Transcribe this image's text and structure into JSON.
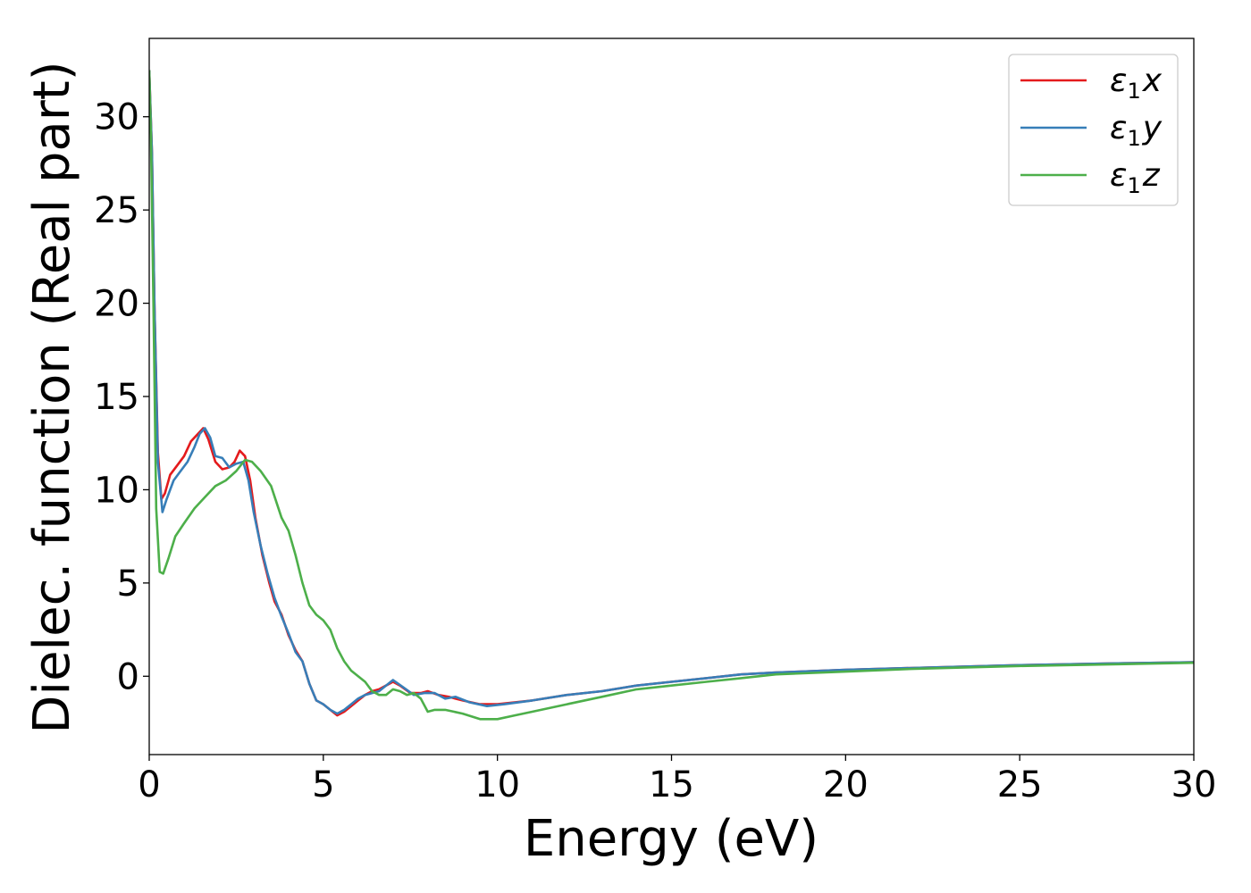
{
  "chart_data": {
    "type": "line",
    "xlabel": "Energy (eV)",
    "ylabel": "Dielec. function (Real part)",
    "xlim": [
      0,
      30
    ],
    "ylim": [
      -4.2,
      34.2
    ],
    "xticks": [
      "0",
      "5",
      "10",
      "15",
      "20",
      "25",
      "30"
    ],
    "yticks": [
      "0",
      "5",
      "10",
      "15",
      "20",
      "25",
      "30"
    ],
    "grid": false,
    "legend_position": "top-right",
    "series": [
      {
        "name": "ε1x",
        "legend_base": "ε",
        "legend_sub": "1",
        "legend_var": "x",
        "color": "#e41a1c",
        "points": [
          [
            0,
            32.5
          ],
          [
            0.08,
            28
          ],
          [
            0.15,
            20
          ],
          [
            0.25,
            12
          ],
          [
            0.35,
            9.5
          ],
          [
            0.45,
            9.8
          ],
          [
            0.6,
            10.8
          ],
          [
            0.8,
            11.3
          ],
          [
            1.0,
            11.8
          ],
          [
            1.2,
            12.6
          ],
          [
            1.4,
            13.0
          ],
          [
            1.55,
            13.3
          ],
          [
            1.7,
            12.7
          ],
          [
            1.9,
            11.5
          ],
          [
            2.1,
            11.1
          ],
          [
            2.3,
            11.2
          ],
          [
            2.45,
            11.5
          ],
          [
            2.6,
            12.1
          ],
          [
            2.75,
            11.8
          ],
          [
            2.9,
            10.5
          ],
          [
            3.05,
            8.5
          ],
          [
            3.25,
            6.5
          ],
          [
            3.45,
            5.0
          ],
          [
            3.6,
            4.0
          ],
          [
            3.8,
            3.3
          ],
          [
            4.0,
            2.2
          ],
          [
            4.2,
            1.4
          ],
          [
            4.4,
            0.8
          ],
          [
            4.6,
            -0.4
          ],
          [
            4.8,
            -1.3
          ],
          [
            5.0,
            -1.5
          ],
          [
            5.2,
            -1.8
          ],
          [
            5.4,
            -2.1
          ],
          [
            5.6,
            -1.9
          ],
          [
            5.8,
            -1.6
          ],
          [
            6.0,
            -1.3
          ],
          [
            6.2,
            -1.0
          ],
          [
            6.4,
            -0.8
          ],
          [
            6.6,
            -0.7
          ],
          [
            6.8,
            -0.5
          ],
          [
            7.0,
            -0.3
          ],
          [
            7.2,
            -0.5
          ],
          [
            7.5,
            -0.9
          ],
          [
            7.8,
            -0.9
          ],
          [
            8.0,
            -0.8
          ],
          [
            8.3,
            -1.0
          ],
          [
            8.6,
            -1.1
          ],
          [
            9.0,
            -1.3
          ],
          [
            9.5,
            -1.5
          ],
          [
            10.0,
            -1.5
          ],
          [
            11,
            -1.3
          ],
          [
            12,
            -1.0
          ],
          [
            13,
            -0.8
          ],
          [
            14,
            -0.5
          ],
          [
            15,
            -0.3
          ],
          [
            16,
            -0.1
          ],
          [
            17,
            0.1
          ],
          [
            18,
            0.2
          ],
          [
            20,
            0.35
          ],
          [
            22,
            0.45
          ],
          [
            25,
            0.6
          ],
          [
            28,
            0.7
          ],
          [
            30,
            0.75
          ]
        ]
      },
      {
        "name": "ε1y",
        "legend_base": "ε",
        "legend_sub": "1",
        "legend_var": "y",
        "color": "#377eb8",
        "points": [
          [
            0,
            32.5
          ],
          [
            0.08,
            28
          ],
          [
            0.15,
            20
          ],
          [
            0.25,
            11.5
          ],
          [
            0.38,
            8.8
          ],
          [
            0.5,
            9.5
          ],
          [
            0.7,
            10.5
          ],
          [
            0.9,
            11.0
          ],
          [
            1.1,
            11.5
          ],
          [
            1.3,
            12.3
          ],
          [
            1.45,
            13.0
          ],
          [
            1.6,
            13.3
          ],
          [
            1.75,
            12.8
          ],
          [
            1.9,
            11.8
          ],
          [
            2.1,
            11.7
          ],
          [
            2.3,
            11.2
          ],
          [
            2.5,
            11.4
          ],
          [
            2.7,
            11.5
          ],
          [
            2.85,
            10.5
          ],
          [
            3.0,
            8.8
          ],
          [
            3.2,
            7.0
          ],
          [
            3.4,
            5.5
          ],
          [
            3.6,
            4.2
          ],
          [
            3.8,
            3.2
          ],
          [
            4.0,
            2.3
          ],
          [
            4.2,
            1.3
          ],
          [
            4.4,
            0.8
          ],
          [
            4.6,
            -0.4
          ],
          [
            4.8,
            -1.3
          ],
          [
            5.0,
            -1.5
          ],
          [
            5.2,
            -1.8
          ],
          [
            5.4,
            -2.0
          ],
          [
            5.6,
            -1.8
          ],
          [
            5.8,
            -1.5
          ],
          [
            6.0,
            -1.2
          ],
          [
            6.2,
            -1.0
          ],
          [
            6.4,
            -0.9
          ],
          [
            6.6,
            -0.8
          ],
          [
            6.8,
            -0.5
          ],
          [
            7.0,
            -0.2
          ],
          [
            7.3,
            -0.6
          ],
          [
            7.6,
            -1.0
          ],
          [
            7.9,
            -0.9
          ],
          [
            8.2,
            -0.9
          ],
          [
            8.5,
            -1.2
          ],
          [
            8.8,
            -1.1
          ],
          [
            9.2,
            -1.4
          ],
          [
            9.7,
            -1.6
          ],
          [
            10.2,
            -1.5
          ],
          [
            11,
            -1.3
          ],
          [
            12,
            -1.0
          ],
          [
            13,
            -0.8
          ],
          [
            14,
            -0.5
          ],
          [
            15,
            -0.3
          ],
          [
            16,
            -0.1
          ],
          [
            17,
            0.1
          ],
          [
            18,
            0.2
          ],
          [
            20,
            0.35
          ],
          [
            22,
            0.45
          ],
          [
            25,
            0.6
          ],
          [
            28,
            0.7
          ],
          [
            30,
            0.75
          ]
        ]
      },
      {
        "name": "ε1z",
        "legend_base": "ε",
        "legend_sub": "1",
        "legend_var": "z",
        "color": "#4daf4a",
        "points": [
          [
            0,
            32.5
          ],
          [
            0.05,
            29
          ],
          [
            0.12,
            20
          ],
          [
            0.2,
            9
          ],
          [
            0.3,
            5.6
          ],
          [
            0.4,
            5.5
          ],
          [
            0.55,
            6.3
          ],
          [
            0.75,
            7.5
          ],
          [
            1.0,
            8.2
          ],
          [
            1.3,
            9.0
          ],
          [
            1.6,
            9.6
          ],
          [
            1.9,
            10.2
          ],
          [
            2.2,
            10.5
          ],
          [
            2.5,
            11.0
          ],
          [
            2.75,
            11.6
          ],
          [
            2.95,
            11.5
          ],
          [
            3.2,
            11.0
          ],
          [
            3.5,
            10.2
          ],
          [
            3.8,
            8.5
          ],
          [
            4.0,
            7.8
          ],
          [
            4.2,
            6.5
          ],
          [
            4.4,
            5.0
          ],
          [
            4.6,
            3.8
          ],
          [
            4.8,
            3.3
          ],
          [
            5.0,
            3.0
          ],
          [
            5.2,
            2.5
          ],
          [
            5.4,
            1.5
          ],
          [
            5.6,
            0.8
          ],
          [
            5.8,
            0.3
          ],
          [
            6.0,
            0.0
          ],
          [
            6.2,
            -0.3
          ],
          [
            6.4,
            -0.8
          ],
          [
            6.6,
            -1.0
          ],
          [
            6.8,
            -1.0
          ],
          [
            7.0,
            -0.7
          ],
          [
            7.2,
            -0.8
          ],
          [
            7.4,
            -1.0
          ],
          [
            7.6,
            -0.9
          ],
          [
            7.8,
            -1.2
          ],
          [
            8.0,
            -1.9
          ],
          [
            8.2,
            -1.8
          ],
          [
            8.5,
            -1.8
          ],
          [
            9.0,
            -2.0
          ],
          [
            9.5,
            -2.3
          ],
          [
            10.0,
            -2.3
          ],
          [
            10.5,
            -2.1
          ],
          [
            11,
            -1.9
          ],
          [
            12,
            -1.5
          ],
          [
            13,
            -1.1
          ],
          [
            14,
            -0.7
          ],
          [
            15,
            -0.5
          ],
          [
            16,
            -0.3
          ],
          [
            17,
            -0.1
          ],
          [
            18,
            0.1
          ],
          [
            20,
            0.25
          ],
          [
            22,
            0.4
          ],
          [
            25,
            0.55
          ],
          [
            28,
            0.65
          ],
          [
            30,
            0.72
          ]
        ]
      }
    ]
  }
}
